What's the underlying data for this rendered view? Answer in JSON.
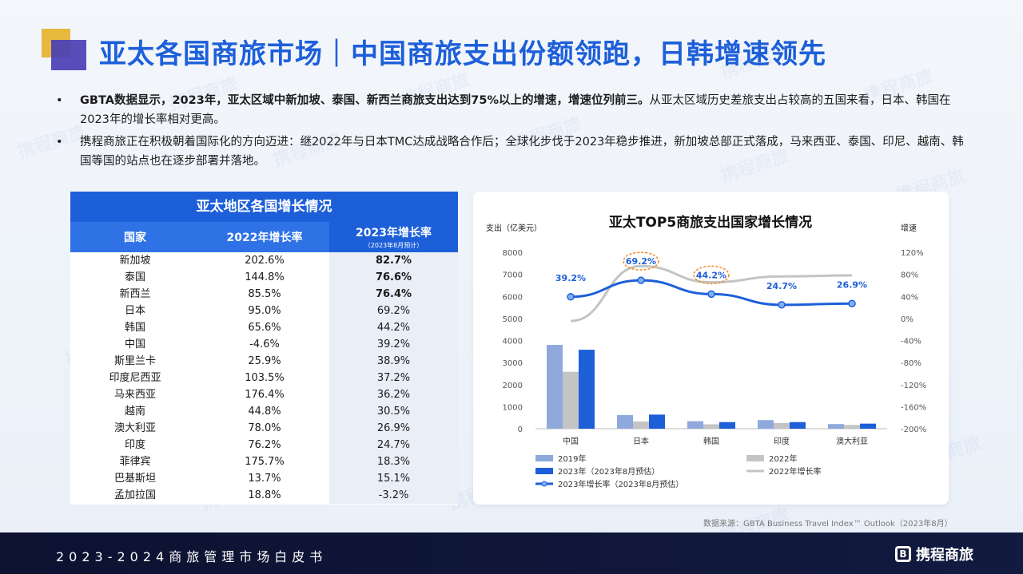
{
  "title": "亚太各国商旅市场｜中国商旅支出份额领跑，日韩增速领先",
  "bullets": [
    {
      "bold": "GBTA数据显示，2023年，亚太区域中新加坡、泰国、新西兰商旅支出达到75%以上的增速，增速位列前三。",
      "text": "从亚太区域历史差旅支出占较高的五国来看，日本、韩国在2023年的增长率相对更高。"
    },
    {
      "bold": "",
      "text": "携程商旅正在积极朝着国际化的方向迈进：继2022年与日本TMC达成战略合作后；全球化步伐于2023年稳步推进，新加坡总部正式落成，马来西亚、泰国、印尼、越南、韩国等国的站点也在逐步部署并落地。"
    }
  ],
  "bullet_mark": "•",
  "table": {
    "title": "亚太地区各国增长情况",
    "headers": [
      "国家",
      "2022年增长率",
      "2023年增长率"
    ],
    "header_sub": "（2023年8月预计）",
    "rows": [
      {
        "country": "新加坡",
        "g2022": "202.6%",
        "g2023": "82.7%",
        "bold": true
      },
      {
        "country": "泰国",
        "g2022": "144.8%",
        "g2023": "76.6%",
        "bold": true
      },
      {
        "country": "新西兰",
        "g2022": "85.5%",
        "g2023": "76.4%",
        "bold": true
      },
      {
        "country": "日本",
        "g2022": "95.0%",
        "g2023": "69.2%",
        "bold": false
      },
      {
        "country": "韩国",
        "g2022": "65.6%",
        "g2023": "44.2%",
        "bold": false
      },
      {
        "country": "中国",
        "g2022": "-4.6%",
        "g2023": "39.2%",
        "bold": false
      },
      {
        "country": "斯里兰卡",
        "g2022": "25.9%",
        "g2023": "38.9%",
        "bold": false
      },
      {
        "country": "印度尼西亚",
        "g2022": "103.5%",
        "g2023": "37.2%",
        "bold": false
      },
      {
        "country": "马来西亚",
        "g2022": "176.4%",
        "g2023": "36.2%",
        "bold": false
      },
      {
        "country": "越南",
        "g2022": "44.8%",
        "g2023": "30.5%",
        "bold": false
      },
      {
        "country": "澳大利亚",
        "g2022": "78.0%",
        "g2023": "26.9%",
        "bold": false
      },
      {
        "country": "印度",
        "g2022": "76.2%",
        "g2023": "24.7%",
        "bold": false
      },
      {
        "country": "菲律宾",
        "g2022": "175.7%",
        "g2023": "18.3%",
        "bold": false
      },
      {
        "country": "巴基斯坦",
        "g2022": "13.7%",
        "g2023": "15.1%",
        "bold": false
      },
      {
        "country": "孟加拉国",
        "g2022": "18.8%",
        "g2023": "-3.2%",
        "bold": false
      }
    ]
  },
  "chart_data": {
    "type": "bar",
    "title": "亚太TOP5商旅支出国家增长情况",
    "ylabel": "支出（亿美元）",
    "y2label": "增速",
    "categories": [
      "中国",
      "日本",
      "韩国",
      "印度",
      "澳大利亚"
    ],
    "ylim": [
      0,
      8000
    ],
    "yticks": [
      0,
      1000,
      2000,
      3000,
      4000,
      5000,
      6000,
      7000,
      8000
    ],
    "y2lim": [
      -200,
      120
    ],
    "y2ticks": [
      120,
      80,
      40,
      0,
      -40,
      -80,
      -120,
      -160,
      -200
    ],
    "y2_unit": "%",
    "series": [
      {
        "name": "2019年",
        "kind": "bar",
        "color": "#8fa9dc",
        "values": [
          3800,
          620,
          340,
          390,
          210
        ]
      },
      {
        "name": "2022年",
        "kind": "bar",
        "color": "#c4c4c4",
        "values": [
          2580,
          330,
          200,
          260,
          170
        ]
      },
      {
        "name": "2023年（2023年8月预估）",
        "kind": "bar",
        "color": "#1d5fd9",
        "values": [
          3580,
          640,
          300,
          300,
          230
        ]
      },
      {
        "name": "2022年增长率",
        "kind": "line",
        "color": "#c4c4c4",
        "values": [
          -4.6,
          95.0,
          65.6,
          76.2,
          78.0
        ]
      },
      {
        "name": "2023年增长率（2023年8月预估）",
        "kind": "line",
        "color": "#1d5fd9",
        "values": [
          39.2,
          69.2,
          44.2,
          24.7,
          26.9
        ]
      }
    ],
    "point_labels": [
      "39.2%",
      "69.2%",
      "44.2%",
      "24.7%",
      "26.9%"
    ],
    "highlighted": [
      "日本",
      "韩国"
    ],
    "grid": false,
    "legend_position": "bottom-left"
  },
  "source": "数据来源：GBTA Business Travel Index™ Outlook（2023年8月）",
  "footer": {
    "text": "2023-2024商旅管理市场白皮书",
    "logo": "携程商旅",
    "logo_mark": "B"
  },
  "watermark": "携程商旅",
  "colors": {
    "brand": "#1d5fd9",
    "accent_gold": "#e6b93e",
    "accent_purple": "#4a3fb5",
    "highlight_orange": "#f08a24",
    "footer_bg": "#0c1230"
  }
}
